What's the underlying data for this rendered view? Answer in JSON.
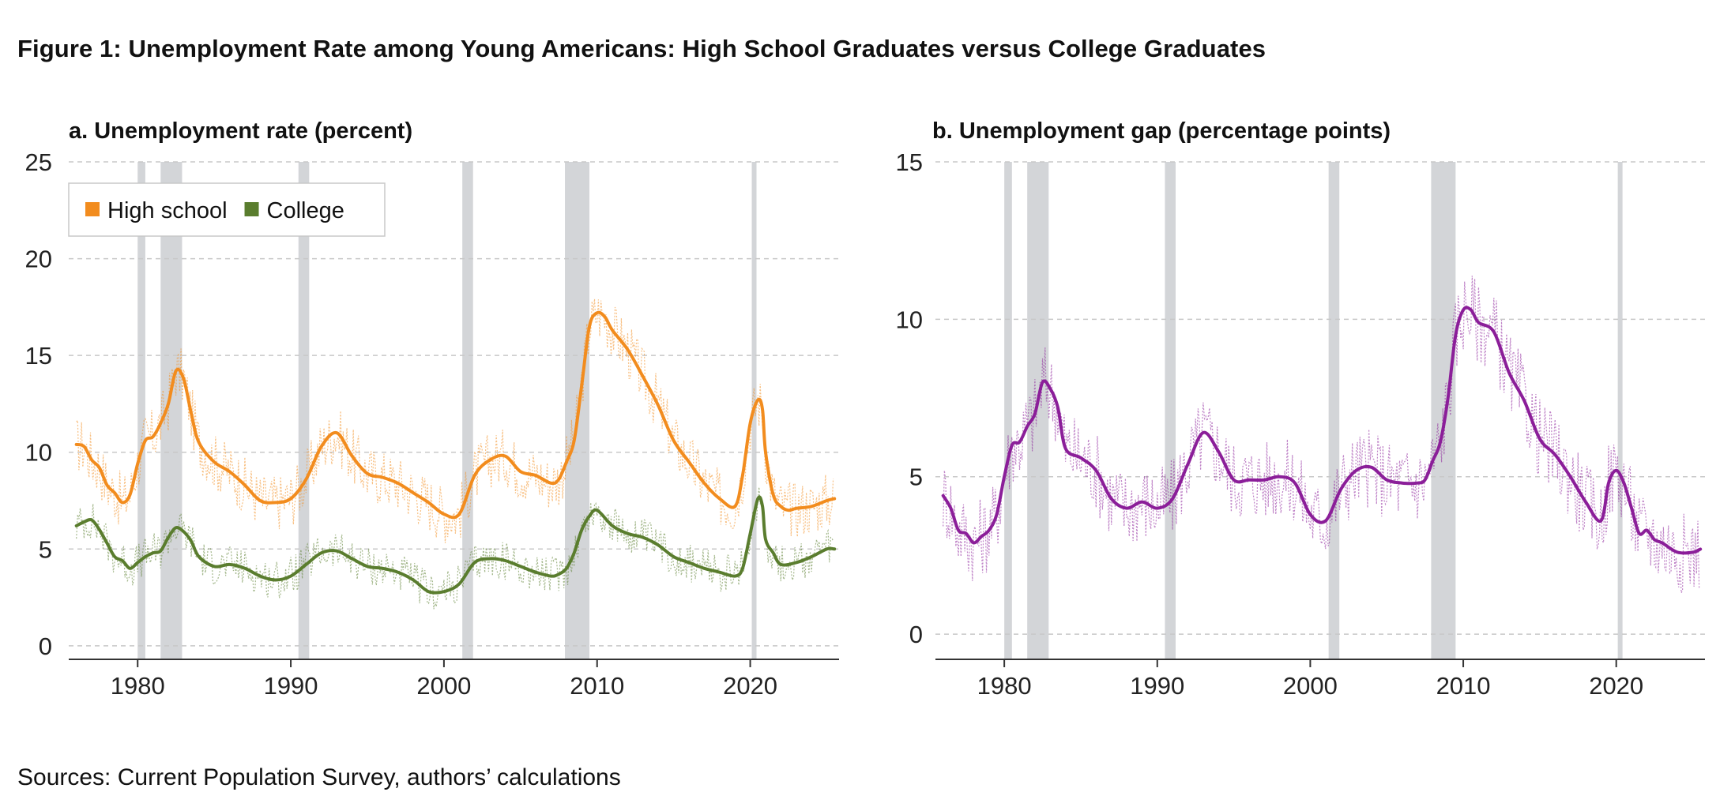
{
  "title": "Figure 1: Unemployment Rate among Young Americans: High School Graduates versus College Graduates",
  "source": "Sources: Current Population Survey, authors’ calculations",
  "colors": {
    "high_school": "#F28C1E",
    "college": "#5A7D2E",
    "gap": "#8B1E99",
    "recession": "#D3D5D8",
    "grid": "#C8C8C8"
  },
  "chart_data": [
    {
      "type": "line",
      "title": "a. Unemployment rate (percent)",
      "xlabel": "",
      "ylabel": "",
      "xlim": [
        1975.5,
        2025.8
      ],
      "ylim": [
        -0.7,
        25
      ],
      "yticks": [
        0,
        5,
        10,
        15,
        20,
        25
      ],
      "xticks": [
        1980,
        1990,
        2000,
        2010,
        2020
      ],
      "grid": true,
      "legend": "top-left",
      "recessions": [
        [
          1980.0,
          1980.5
        ],
        [
          1981.5,
          1982.9
        ],
        [
          1990.5,
          1991.2
        ],
        [
          2001.2,
          2001.9
        ],
        [
          2007.9,
          2009.5
        ],
        [
          2020.1,
          2020.4
        ]
      ],
      "series": [
        {
          "name": "High school",
          "x": [
            1976,
            1976.5,
            1977,
            1977.5,
            1978,
            1978.5,
            1979,
            1979.5,
            1980,
            1980.5,
            1981,
            1981.5,
            1982,
            1982.5,
            1983,
            1983.5,
            1984,
            1985,
            1986,
            1987,
            1988,
            1989,
            1990,
            1991,
            1992,
            1993,
            1994,
            1995,
            1996,
            1997,
            1998,
            1999,
            2000,
            2001,
            2002,
            2003,
            2004,
            2005,
            2006,
            2007,
            2007.5,
            2008,
            2008.5,
            2009,
            2009.5,
            2010,
            2010.5,
            2011,
            2012,
            2013,
            2014,
            2015,
            2016,
            2017,
            2018,
            2019,
            2019.5,
            2020,
            2020.5,
            2020.8,
            2021,
            2021.5,
            2022,
            2022.5,
            2023,
            2024,
            2025,
            2025.5
          ],
          "values": [
            10.4,
            10.3,
            9.6,
            9.2,
            8.3,
            7.9,
            7.4,
            7.8,
            9.4,
            10.6,
            10.8,
            11.5,
            12.5,
            14.2,
            13.8,
            12.0,
            10.5,
            9.5,
            9.0,
            8.3,
            7.5,
            7.4,
            7.6,
            8.6,
            10.3,
            11.0,
            9.8,
            8.9,
            8.7,
            8.4,
            7.9,
            7.4,
            6.8,
            6.8,
            8.8,
            9.6,
            9.8,
            9.0,
            8.8,
            8.4,
            8.6,
            9.5,
            10.6,
            13.5,
            16.5,
            17.2,
            17.0,
            16.3,
            15.3,
            13.9,
            12.4,
            10.6,
            9.5,
            8.4,
            7.6,
            7.2,
            8.8,
            11.5,
            12.7,
            12.2,
            10.0,
            7.8,
            7.2,
            7.0,
            7.1,
            7.2,
            7.5,
            7.6
          ]
        },
        {
          "name": "College",
          "x": [
            1976,
            1976.5,
            1977,
            1977.5,
            1978,
            1978.5,
            1979,
            1979.5,
            1980,
            1980.5,
            1981,
            1981.5,
            1982,
            1982.5,
            1983,
            1983.5,
            1984,
            1985,
            1986,
            1987,
            1988,
            1989,
            1990,
            1991,
            1992,
            1993,
            1994,
            1995,
            1996,
            1997,
            1998,
            1999,
            2000,
            2001,
            2002,
            2003,
            2004,
            2005,
            2006,
            2007,
            2007.5,
            2008,
            2008.5,
            2009,
            2009.5,
            2010,
            2011,
            2012,
            2013,
            2014,
            2015,
            2016,
            2017,
            2018,
            2019,
            2019.5,
            2020,
            2020.5,
            2020.8,
            2021,
            2021.5,
            2022,
            2023,
            2024,
            2025,
            2025.5
          ],
          "values": [
            6.2,
            6.4,
            6.5,
            6.0,
            5.3,
            4.6,
            4.4,
            4.0,
            4.3,
            4.6,
            4.8,
            4.9,
            5.6,
            6.1,
            5.9,
            5.4,
            4.6,
            4.1,
            4.2,
            4.0,
            3.6,
            3.4,
            3.6,
            4.2,
            4.8,
            4.9,
            4.5,
            4.1,
            4.0,
            3.8,
            3.4,
            2.8,
            2.8,
            3.2,
            4.3,
            4.5,
            4.4,
            4.1,
            3.8,
            3.6,
            3.7,
            4.0,
            4.8,
            6.0,
            6.7,
            7.0,
            6.2,
            5.8,
            5.6,
            5.2,
            4.6,
            4.3,
            4.0,
            3.8,
            3.6,
            4.0,
            5.8,
            7.6,
            7.2,
            5.5,
            4.8,
            4.2,
            4.3,
            4.6,
            5.0,
            5.0
          ]
        }
      ]
    },
    {
      "type": "line",
      "title": "b. Unemployment gap (percentage points)",
      "xlabel": "",
      "ylabel": "",
      "xlim": [
        1975.5,
        2025.8
      ],
      "ylim": [
        -0.8,
        15
      ],
      "yticks": [
        0,
        5,
        10,
        15
      ],
      "xticks": [
        1980,
        1990,
        2000,
        2010,
        2020
      ],
      "grid": true,
      "legend": "none",
      "recessions": [
        [
          1980.0,
          1980.5
        ],
        [
          1981.5,
          1982.9
        ],
        [
          1990.5,
          1991.2
        ],
        [
          2001.2,
          2001.9
        ],
        [
          2007.9,
          2009.5
        ],
        [
          2020.1,
          2020.4
        ]
      ],
      "series": [
        {
          "x": [
            1976,
            1976.5,
            1977,
            1977.5,
            1978,
            1978.5,
            1979,
            1979.5,
            1980,
            1980.5,
            1981,
            1981.5,
            1982,
            1982.5,
            1983,
            1983.5,
            1984,
            1985,
            1986,
            1987,
            1988,
            1989,
            1990,
            1991,
            1992,
            1993,
            1994,
            1995,
            1996,
            1997,
            1998,
            1999,
            2000,
            2001,
            2002,
            2003,
            2004,
            2005,
            2006,
            2007,
            2007.5,
            2008,
            2008.5,
            2009,
            2009.5,
            2010,
            2010.5,
            2011,
            2012,
            2013,
            2014,
            2015,
            2016,
            2017,
            2018,
            2019,
            2019.5,
            2020,
            2020.5,
            2021,
            2021.5,
            2022,
            2022.5,
            2023,
            2024,
            2025,
            2025.5
          ],
          "values": [
            4.4,
            4.0,
            3.3,
            3.2,
            2.9,
            3.1,
            3.3,
            3.8,
            5.0,
            6.0,
            6.1,
            6.6,
            7.0,
            8.0,
            7.8,
            7.2,
            5.9,
            5.6,
            5.2,
            4.3,
            4.0,
            4.2,
            4.0,
            4.3,
            5.4,
            6.4,
            5.8,
            4.9,
            4.9,
            4.9,
            5.0,
            4.8,
            3.8,
            3.6,
            4.6,
            5.2,
            5.3,
            4.9,
            4.8,
            4.8,
            4.9,
            5.5,
            6.1,
            7.5,
            9.5,
            10.3,
            10.3,
            9.9,
            9.6,
            8.3,
            7.4,
            6.2,
            5.7,
            5.0,
            4.2,
            3.6,
            4.8,
            5.2,
            4.8,
            4.0,
            3.2,
            3.3,
            3.0,
            2.9,
            2.6,
            2.6,
            2.7
          ]
        }
      ]
    }
  ]
}
